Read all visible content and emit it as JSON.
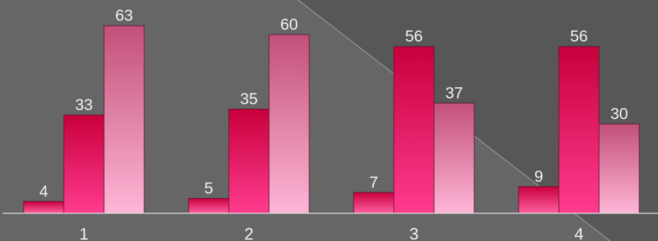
{
  "chart_data": {
    "type": "bar",
    "categories": [
      "1",
      "2",
      "3",
      "4"
    ],
    "series": [
      {
        "values": [
          4,
          5,
          7,
          9
        ]
      },
      {
        "values": [
          33,
          35,
          56,
          56
        ]
      },
      {
        "values": [
          63,
          60,
          37,
          30
        ]
      }
    ],
    "title": "",
    "xlabel": "",
    "ylabel": "",
    "ylim": [
      0,
      70
    ],
    "grid": false,
    "legend": "none"
  },
  "colors": {
    "background": "#575757",
    "background_light": "#666666",
    "series_1_top": "#c8003c",
    "series_1_bottom": "#ff5fa0",
    "series_2_top": "#c8003c",
    "series_2_bottom": "#ff3b8f",
    "series_3_top": "#c2507a",
    "series_3_bottom": "#ffb6d6",
    "label": "#f2f2f2",
    "axis": "#d8d8d8"
  }
}
